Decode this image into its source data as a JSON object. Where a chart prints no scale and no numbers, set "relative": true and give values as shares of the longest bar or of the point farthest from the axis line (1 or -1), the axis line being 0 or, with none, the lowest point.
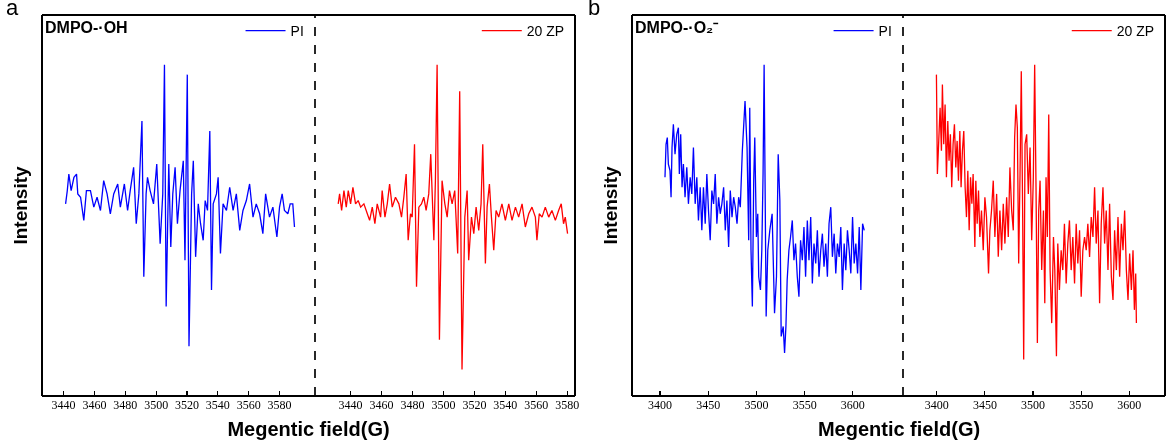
{
  "chart_data": [
    {
      "type": "line",
      "title": "DMPO-·OH",
      "annotations": [
        "a"
      ],
      "xlabel": "Megentic field(G)",
      "ylabel": "Intensity",
      "relative": true,
      "legend": "top right",
      "xlim": [
        3426,
        3603
      ],
      "xticks": [
        3440,
        3460,
        3480,
        3500,
        3520,
        3540,
        3560,
        3580
      ],
      "x": [
        3441.3,
        3442.4,
        3443.4,
        3444.9,
        3446.7,
        3448.4,
        3449.2,
        3451.0,
        3453.1,
        3454.8,
        3457.4,
        3459.6,
        3461.7,
        3463.9,
        3466.0,
        3468.2,
        3470.3,
        3472.5,
        3475.1,
        3476.8,
        3479.4,
        3481.5,
        3483.2,
        3485.4,
        3487.1,
        3488.8,
        3490.8,
        3492.0,
        3493.5,
        3494.4,
        3496.1,
        3498.3,
        3500.4,
        3502.6,
        3504.3,
        3505.4,
        3506.5,
        3508.2,
        3509.5,
        3510.8,
        3512.3,
        3513.8,
        3515.5,
        3517.6,
        3518.7,
        3520.2,
        3521.3,
        3523.0,
        3524.1,
        3525.6,
        3527.3,
        3528.8,
        3530.5,
        3531.8,
        3533.3,
        3534.8,
        3535.9,
        3537.0,
        3539.1,
        3540.2,
        3541.7,
        3543.4,
        3545.6,
        3547.7,
        3549.9,
        3552.0,
        3554.2,
        3556.3,
        3558.5,
        3560.6,
        3562.8,
        3564.9,
        3567.1,
        3569.2,
        3571.0,
        3573.5,
        3575.7,
        3578.3,
        3580.0,
        3581.7,
        3583.2,
        3585.4,
        3586.9,
        3588.6,
        3589.7
      ],
      "series": [
        {
          "name": "PI",
          "color": "#0000ff",
          "values": [
            0.58,
            0.62,
            0.67,
            0.62,
            0.66,
            0.67,
            0.61,
            0.6,
            0.53,
            0.62,
            0.62,
            0.57,
            0.6,
            0.56,
            0.65,
            0.61,
            0.55,
            0.61,
            0.64,
            0.57,
            0.64,
            0.56,
            0.62,
            0.69,
            0.52,
            0.61,
            0.83,
            0.36,
            0.61,
            0.66,
            0.62,
            0.58,
            0.7,
            0.46,
            0.61,
            1,
            0.27,
            0.7,
            0.45,
            0.61,
            0.69,
            0.52,
            0.62,
            0.71,
            0.41,
            0.97,
            0.15,
            0.61,
            0.71,
            0.42,
            0.58,
            0.52,
            0.47,
            0.59,
            0.56,
            0.8,
            0.32,
            0.58,
            0.61,
            0.66,
            0.43,
            0.58,
            0.56,
            0.63,
            0.56,
            0.61,
            0.5,
            0.56,
            0.59,
            0.64,
            0.54,
            0.58,
            0.55,
            0.49,
            0.61,
            0.54,
            0.57,
            0.48,
            0.57,
            0.61,
            0.56,
            0.55,
            0.58,
            0.58,
            0.51
          ]
        }
      ]
    },
    {
      "type": "line",
      "relative": true,
      "legend": "top right",
      "xlim": [
        3417,
        3585
      ],
      "xticks": [
        3440,
        3460,
        3480,
        3500,
        3520,
        3540,
        3560,
        3580
      ],
      "x": [
        3432.0,
        3432.9,
        3434.2,
        3435.7,
        3437.2,
        3438.5,
        3440.0,
        3441.5,
        3443.2,
        3444.9,
        3446.5,
        3448.6,
        3450.8,
        3452.3,
        3454.0,
        3455.7,
        3457.2,
        3459.4,
        3460.4,
        3462.2,
        3463.7,
        3465.2,
        3466.9,
        3469.0,
        3471.2,
        3472.9,
        3474.4,
        3475.9,
        3477.2,
        3478.7,
        3479.8,
        3481.3,
        3482.6,
        3484.1,
        3485.8,
        3487.3,
        3488.8,
        3490.5,
        3491.8,
        3493.8,
        3494.8,
        3495.9,
        3497.4,
        3499.1,
        3500.9,
        3502.4,
        3503.9,
        3505.6,
        3507.3,
        3509.2,
        3510.5,
        3512.0,
        3513.8,
        3515.3,
        3516.3,
        3518.1,
        3519.6,
        3521.1,
        3522.8,
        3524.3,
        3525.4,
        3527.1,
        3528.2,
        3529.7,
        3531.0,
        3532.5,
        3534.0,
        3535.7,
        3537.8,
        3540.0,
        3542.2,
        3544.3,
        3546.5,
        3548.6,
        3550.8,
        3552.9,
        3555.1,
        3557.2,
        3559.4,
        3560.4,
        3561.9,
        3563.7,
        3565.8,
        3568.0,
        3570.1,
        3572.3,
        3574.4,
        3576.1,
        3577.6,
        3578.7,
        3580.2
      ],
      "series": [
        {
          "name": "20 ZP",
          "color": "#ff0000",
          "values": [
            0.58,
            0.61,
            0.56,
            0.62,
            0.57,
            0.62,
            0.58,
            0.63,
            0.58,
            0.59,
            0.57,
            0.58,
            0.55,
            0.53,
            0.57,
            0.52,
            0.58,
            0.54,
            0.62,
            0.54,
            0.58,
            0.64,
            0.57,
            0.6,
            0.58,
            0.54,
            0.6,
            0.67,
            0.47,
            0.55,
            0.54,
            0.76,
            0.33,
            0.57,
            0.58,
            0.6,
            0.56,
            0.61,
            0.73,
            0.47,
            0.65,
            1,
            0.17,
            0.65,
            0.58,
            0.54,
            0.62,
            0.58,
            0.62,
            0.43,
            0.92,
            0.08,
            0.54,
            0.62,
            0.41,
            0.54,
            0.49,
            0.57,
            0.5,
            0.58,
            0.76,
            0.4,
            0.57,
            0.64,
            0.54,
            0.44,
            0.56,
            0.54,
            0.58,
            0.53,
            0.58,
            0.53,
            0.57,
            0.54,
            0.58,
            0.51,
            0.55,
            0.57,
            0.54,
            0.47,
            0.55,
            0.54,
            0.57,
            0.54,
            0.56,
            0.53,
            0.56,
            0.58,
            0.52,
            0.54,
            0.49
          ]
        }
      ]
    },
    {
      "type": "line",
      "title": "DMPO-·O₂⁻",
      "annotations": [
        "b"
      ],
      "xlabel": "Megentic field(G)",
      "ylabel": "Intensity",
      "relative": true,
      "legend": "top right",
      "xlim": [
        3371,
        3652
      ],
      "xticks": [
        3400,
        3450,
        3500,
        3550,
        3600
      ],
      "x": [
        3405.2,
        3406.3,
        3407.6,
        3408.7,
        3410.4,
        3411.5,
        3412.5,
        3413.9,
        3415.6,
        3417.4,
        3419.1,
        3420.1,
        3421.5,
        3422.9,
        3424.3,
        3426.0,
        3427.8,
        3429.5,
        3431.3,
        3433.0,
        3434.7,
        3436.5,
        3438.2,
        3439.9,
        3441.7,
        3443.4,
        3445.1,
        3446.9,
        3448.6,
        3450.3,
        3452.1,
        3453.8,
        3455.6,
        3457.3,
        3459.0,
        3460.8,
        3462.5,
        3464.2,
        3466.0,
        3467.7,
        3469.4,
        3471.2,
        3472.9,
        3474.7,
        3476.4,
        3478.1,
        3479.9,
        3481.6,
        3483.3,
        3485.4,
        3488.2,
        3490.3,
        3492.0,
        3493.1,
        3494.4,
        3495.8,
        3497.2,
        3498.3,
        3500.0,
        3501.4,
        3502.4,
        3504.2,
        3505.6,
        3506.9,
        3508.0,
        3510.1,
        3511.8,
        3513.9,
        3516.3,
        3518.8,
        3520.8,
        3522.6,
        3524.3,
        3525.7,
        3527.8,
        3529.2,
        3530.6,
        3531.9,
        3533.7,
        3535.4,
        3537.2,
        3538.9,
        3540.6,
        3542.4,
        3544.1,
        3545.8,
        3547.6,
        3549.3,
        3551.0,
        3552.8,
        3554.5,
        3556.3,
        3558.0,
        3559.7,
        3561.5,
        3563.2,
        3564.9,
        3566.7,
        3568.4,
        3570.1,
        3571.9,
        3573.6,
        3575.3,
        3577.1,
        3578.8,
        3580.6,
        3582.3,
        3584.0,
        3585.8,
        3587.5,
        3589.2,
        3591.0,
        3592.7,
        3594.4,
        3596.2,
        3597.9,
        3599.7,
        3601.4,
        3603.1,
        3604.9,
        3606.6,
        3608.3,
        3610.1,
        3611.8
      ],
      "series": [
        {
          "name": "PI",
          "color": "#0000ff",
          "values": [
            0.66,
            0.76,
            0.78,
            0.7,
            0.68,
            0.6,
            0.75,
            0.82,
            0.73,
            0.79,
            0.81,
            0.67,
            0.79,
            0.63,
            0.7,
            0.6,
            0.69,
            0.58,
            0.66,
            0.61,
            0.75,
            0.58,
            0.66,
            0.53,
            0.63,
            0.5,
            0.63,
            0.52,
            0.67,
            0.56,
            0.47,
            0.62,
            0.58,
            0.67,
            0.52,
            0.6,
            0.55,
            0.58,
            0.63,
            0.5,
            0.59,
            0.45,
            0.62,
            0.54,
            0.6,
            0.57,
            0.52,
            0.6,
            0.57,
            0.74,
            0.89,
            0.75,
            0.47,
            0.87,
            0.44,
            0.27,
            0.65,
            0.78,
            0.48,
            0.55,
            0.36,
            0.32,
            0.44,
            0.67,
            1,
            0.24,
            0.44,
            0.5,
            0.55,
            0.25,
            0.36,
            0.73,
            0.59,
            0.18,
            0.21,
            0.13,
            0.21,
            0.35,
            0.44,
            0.48,
            0.53,
            0.41,
            0.46,
            0.36,
            0.3,
            0.47,
            0.41,
            0.51,
            0.36,
            0.53,
            0.41,
            0.54,
            0.34,
            0.46,
            0.4,
            0.5,
            0.36,
            0.44,
            0.49,
            0.39,
            0.46,
            0.36,
            0.52,
            0.57,
            0.42,
            0.49,
            0.37,
            0.46,
            0.42,
            0.51,
            0.32,
            0.46,
            0.38,
            0.5,
            0.44,
            0.37,
            0.54,
            0.4,
            0.46,
            0.37,
            0.51,
            0.32,
            0.52,
            0.5
          ]
        }
      ]
    },
    {
      "type": "line",
      "relative": true,
      "legend": "top right",
      "xlim": [
        3365,
        3637
      ],
      "xticks": [
        3400,
        3450,
        3500,
        3550,
        3600
      ],
      "x": [
        3399.7,
        3400.7,
        3402.1,
        3403.5,
        3404.9,
        3405.9,
        3407.3,
        3408.7,
        3410.1,
        3411.5,
        3412.8,
        3414.2,
        3415.6,
        3417.0,
        3418.4,
        3419.8,
        3421.2,
        3422.6,
        3424.0,
        3425.3,
        3426.7,
        3428.1,
        3429.5,
        3430.9,
        3432.3,
        3433.7,
        3435.1,
        3436.5,
        3437.8,
        3439.6,
        3440.6,
        3442.0,
        3443.4,
        3444.8,
        3446.5,
        3448.3,
        3450.0,
        3451.7,
        3453.8,
        3455.2,
        3456.9,
        3458.7,
        3460.4,
        3462.2,
        3463.9,
        3465.6,
        3467.4,
        3469.1,
        3470.8,
        3472.6,
        3474.3,
        3476.0,
        3477.8,
        3479.5,
        3480.9,
        3482.3,
        3483.7,
        3485.1,
        3486.5,
        3487.8,
        3489.2,
        3490.3,
        3491.7,
        3493.4,
        3495.1,
        3496.9,
        3498.6,
        3500.3,
        3501.7,
        3503.1,
        3504.5,
        3505.9,
        3507.3,
        3509.0,
        3510.8,
        3512.2,
        3513.5,
        3514.9,
        3516.3,
        3517.7,
        3519.4,
        3521.2,
        3522.6,
        3524.3,
        3525.7,
        3527.4,
        3529.2,
        3530.9,
        3532.6,
        3534.4,
        3536.1,
        3537.8,
        3539.6,
        3541.3,
        3543.1,
        3544.8,
        3546.5,
        3548.3,
        3550.0,
        3551.7,
        3553.5,
        3555.2,
        3556.9,
        3558.7,
        3560.4,
        3562.2,
        3563.9,
        3565.6,
        3567.4,
        3569.1,
        3570.8,
        3572.6,
        3574.3,
        3576.0,
        3577.8,
        3579.5,
        3581.3,
        3583.0,
        3584.7,
        3586.5,
        3588.2,
        3589.9,
        3591.7,
        3593.4,
        3595.1,
        3596.9,
        3598.6,
        3600.3,
        3602.1,
        3603.8,
        3605.2,
        3606.6,
        3607.3
      ],
      "series": [
        {
          "name": "20 ZP",
          "color": "#ff0000",
          "values": [
            0.97,
            0.67,
            0.77,
            0.87,
            0.74,
            0.94,
            0.76,
            0.88,
            0.66,
            0.83,
            0.71,
            0.79,
            0.63,
            0.76,
            0.82,
            0.69,
            0.77,
            0.65,
            0.8,
            0.63,
            0.74,
            0.8,
            0.63,
            0.54,
            0.68,
            0.5,
            0.66,
            0.58,
            0.67,
            0.45,
            0.65,
            0.52,
            0.62,
            0.48,
            0.56,
            0.44,
            0.6,
            0.54,
            0.37,
            0.5,
            0.56,
            0.65,
            0.48,
            0.61,
            0.42,
            0.56,
            0.44,
            0.58,
            0.46,
            0.6,
            0.48,
            0.69,
            0.56,
            0.5,
            0.78,
            0.88,
            0.81,
            0.4,
            0.67,
            0.98,
            0.56,
            0.11,
            0.76,
            0.79,
            0.61,
            0.75,
            0.47,
            0.66,
            1,
            0.63,
            0.16,
            0.56,
            0.65,
            0.38,
            0.56,
            0.28,
            0.66,
            0.48,
            0.85,
            0.38,
            0.22,
            0.48,
            0.38,
            0.12,
            0.46,
            0.32,
            0.44,
            0.38,
            0.52,
            0.34,
            0.46,
            0.53,
            0.38,
            0.48,
            0.34,
            0.52,
            0.4,
            0.5,
            0.3,
            0.44,
            0.48,
            0.44,
            0.52,
            0.42,
            0.54,
            0.48,
            0.63,
            0.46,
            0.56,
            0.28,
            0.52,
            0.63,
            0.46,
            0.56,
            0.38,
            0.58,
            0.36,
            0.29,
            0.5,
            0.38,
            0.54,
            0.36,
            0.52,
            0.44,
            0.56,
            0.38,
            0.29,
            0.43,
            0.32,
            0.44,
            0.26,
            0.37,
            0.22
          ]
        }
      ]
    }
  ]
}
